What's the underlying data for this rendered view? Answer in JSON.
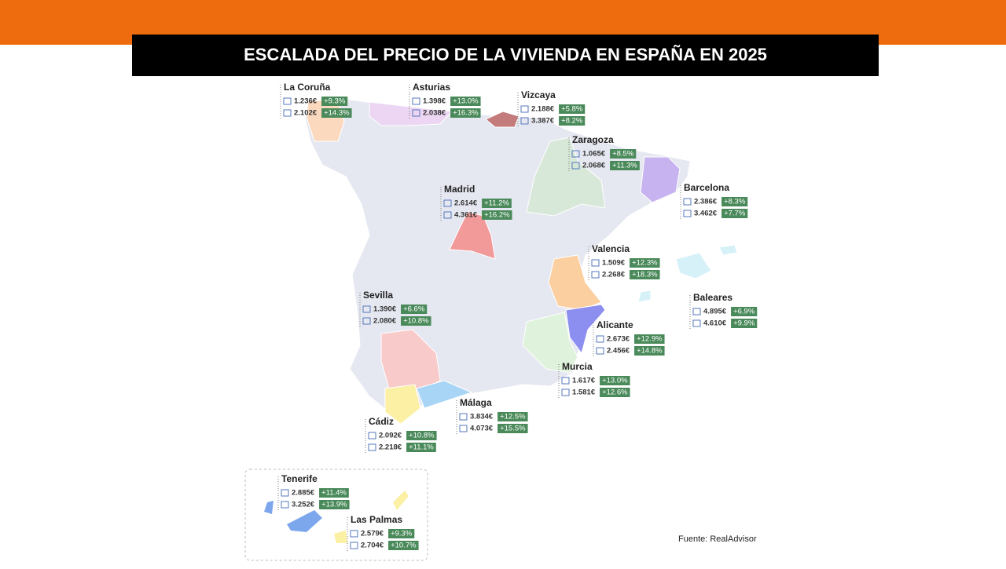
{
  "header": {
    "title": "ESCALADA DEL PRECIO DE LA VIVIENDA EN ESPAÑA EN 2025"
  },
  "regions": [
    {
      "name": "La Coruña",
      "rows": [
        {
          "price": "1.236€",
          "change": "+9.3%"
        },
        {
          "price": "2.102€",
          "change": "+14.3%"
        }
      ]
    },
    {
      "name": "Asturias",
      "rows": [
        {
          "price": "1.398€",
          "change": "+13.0%"
        },
        {
          "price": "2.038€",
          "change": "+16.3%"
        }
      ]
    },
    {
      "name": "Vizcaya",
      "rows": [
        {
          "price": "2.188€",
          "change": "+5.8%"
        },
        {
          "price": "3.387€",
          "change": "+8.2%"
        }
      ]
    },
    {
      "name": "Zaragoza",
      "rows": [
        {
          "price": "1.065€",
          "change": "+8.5%"
        },
        {
          "price": "2.068€",
          "change": "+11.3%"
        }
      ]
    },
    {
      "name": "Barcelona",
      "rows": [
        {
          "price": "2.386€",
          "change": "+8.3%"
        },
        {
          "price": "3.462€",
          "change": "+7.7%"
        }
      ]
    },
    {
      "name": "Madrid",
      "rows": [
        {
          "price": "2.614€",
          "change": "+11.2%"
        },
        {
          "price": "4.361€",
          "change": "+16.2%"
        }
      ]
    },
    {
      "name": "Valencia",
      "rows": [
        {
          "price": "1.509€",
          "change": "+12.3%"
        },
        {
          "price": "2.268€",
          "change": "+18.3%"
        }
      ]
    },
    {
      "name": "Baleares",
      "rows": [
        {
          "price": "4.895€",
          "change": "+6.9%"
        },
        {
          "price": "4.610€",
          "change": "+9.9%"
        }
      ]
    },
    {
      "name": "Sevilla",
      "rows": [
        {
          "price": "1.390€",
          "change": "+6.6%"
        },
        {
          "price": "2.080€",
          "change": "+10.8%"
        }
      ]
    },
    {
      "name": "Alicante",
      "rows": [
        {
          "price": "2.673€",
          "change": "+12.9%"
        },
        {
          "price": "2.456€",
          "change": "+14.8%"
        }
      ]
    },
    {
      "name": "Murcia",
      "rows": [
        {
          "price": "1.617€",
          "change": "+13.0%"
        },
        {
          "price": "1.581€",
          "change": "+12.6%"
        }
      ]
    },
    {
      "name": "Málaga",
      "rows": [
        {
          "price": "3.834€",
          "change": "+12.5%"
        },
        {
          "price": "4.073€",
          "change": "+15.5%"
        }
      ]
    },
    {
      "name": "Cádiz",
      "rows": [
        {
          "price": "2.092€",
          "change": "+10.8%"
        },
        {
          "price": "2.218€",
          "change": "+11.1%"
        }
      ]
    },
    {
      "name": "Tenerife",
      "rows": [
        {
          "price": "2.885€",
          "change": "+11.4%"
        },
        {
          "price": "3.252€",
          "change": "+13.9%"
        }
      ]
    },
    {
      "name": "Las Palmas",
      "rows": [
        {
          "price": "2.579€",
          "change": "+9.3%"
        },
        {
          "price": "2.704€",
          "change": "+10.7%"
        }
      ]
    }
  ],
  "source": "Fuente: RealAdvisor"
}
